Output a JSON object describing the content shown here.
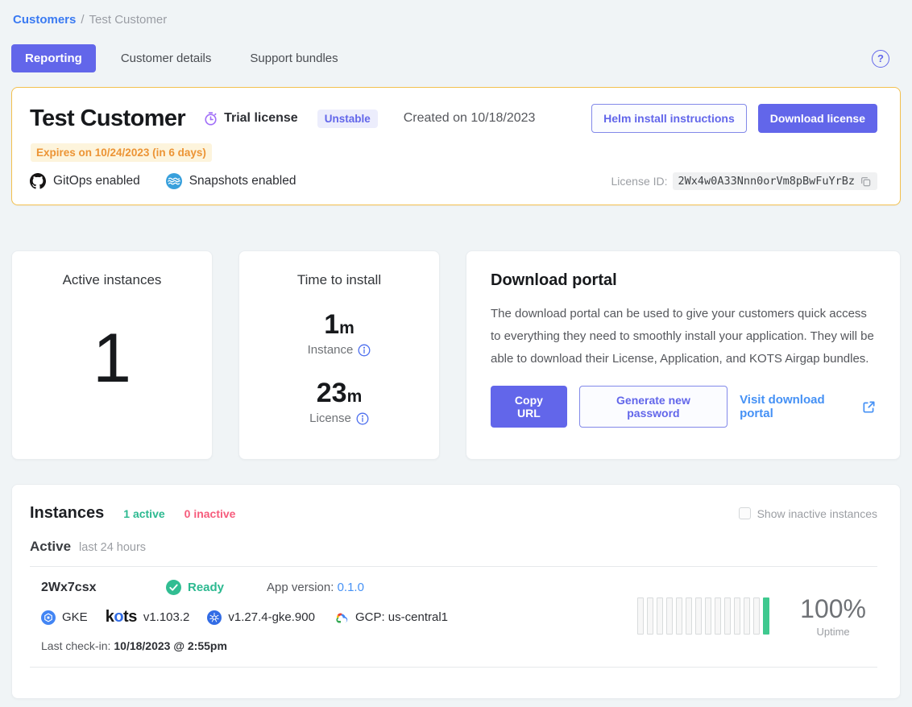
{
  "breadcrumb": {
    "link": "Customers",
    "separator": "/",
    "current": "Test Customer"
  },
  "tabs": [
    {
      "label": "Reporting",
      "active": true
    },
    {
      "label": "Customer details",
      "active": false
    },
    {
      "label": "Support bundles",
      "active": false
    }
  ],
  "help": {
    "glyph": "?"
  },
  "customer_card": {
    "title": "Test Customer",
    "license_type": "Trial license",
    "channel_badge": "Unstable",
    "created": "Created on 10/18/2023",
    "expires": "Expires on 10/24/2023 (in 6 days)",
    "helm_button": "Helm install instructions",
    "download_button": "Download license",
    "features": [
      {
        "icon": "github-icon",
        "label": "GitOps enabled"
      },
      {
        "icon": "snapshots-icon",
        "label": "Snapshots enabled"
      }
    ],
    "license_id_label": "License ID:",
    "license_id": "2Wx4w0A33Nnn0orVm8pBwFuYrBz"
  },
  "stats": {
    "active_instances": {
      "title": "Active instances",
      "value": "1"
    },
    "time_to_install": {
      "title": "Time to install",
      "instance_value": "1",
      "instance_unit": "m",
      "instance_label": "Instance",
      "license_value": "23",
      "license_unit": "m",
      "license_label": "License"
    }
  },
  "download_portal": {
    "title": "Download portal",
    "description": "The download portal can be used to give your customers quick access to everything they need to smoothly install your application. They will be able to download their License, Application, and KOTS Airgap bundles.",
    "copy_url_button": "Copy URL",
    "generate_button": "Generate new password",
    "visit_link": "Visit download portal"
  },
  "instances": {
    "title": "Instances",
    "active_count": "1 active",
    "inactive_count": "0 inactive",
    "show_inactive_label": "Show inactive instances",
    "section_title": "Active",
    "section_range": "last 24 hours",
    "row": {
      "id": "2Wx7csx",
      "status": "Ready",
      "app_version_label": "App version:",
      "app_version": "0.1.0",
      "distribution": "GKE",
      "kots_wordmark": {
        "k": "k",
        "o": "o",
        "ts": "ts"
      },
      "kots_version": "v1.103.2",
      "k8s_version": "v1.27.4-gke.900",
      "cloud_region": "GCP: us-central1",
      "last_checkin_label": "Last check-in:",
      "last_checkin": "10/18/2023 @ 2:55pm",
      "uptime_value": "100%",
      "uptime_label": "Uptime",
      "uptime_bars": {
        "count": 14,
        "up_indexes": [
          13
        ]
      }
    }
  },
  "colors": {
    "primary_indigo": "#6266ea",
    "link_blue": "#4591f5",
    "breadcrumb_blue": "#3a7af2",
    "success_green": "#2cb990",
    "bar_green": "#3fc98f",
    "inactive_pink": "#f65c7c",
    "trial_border_amber": "#f3c04e",
    "expires_orange": "#ec9435",
    "expires_bg": "#fdf4dc",
    "badge_bg": "#ecedfc",
    "page_bg": "#f0f4f6",
    "trial_clock_purple": "#a06ef8"
  }
}
